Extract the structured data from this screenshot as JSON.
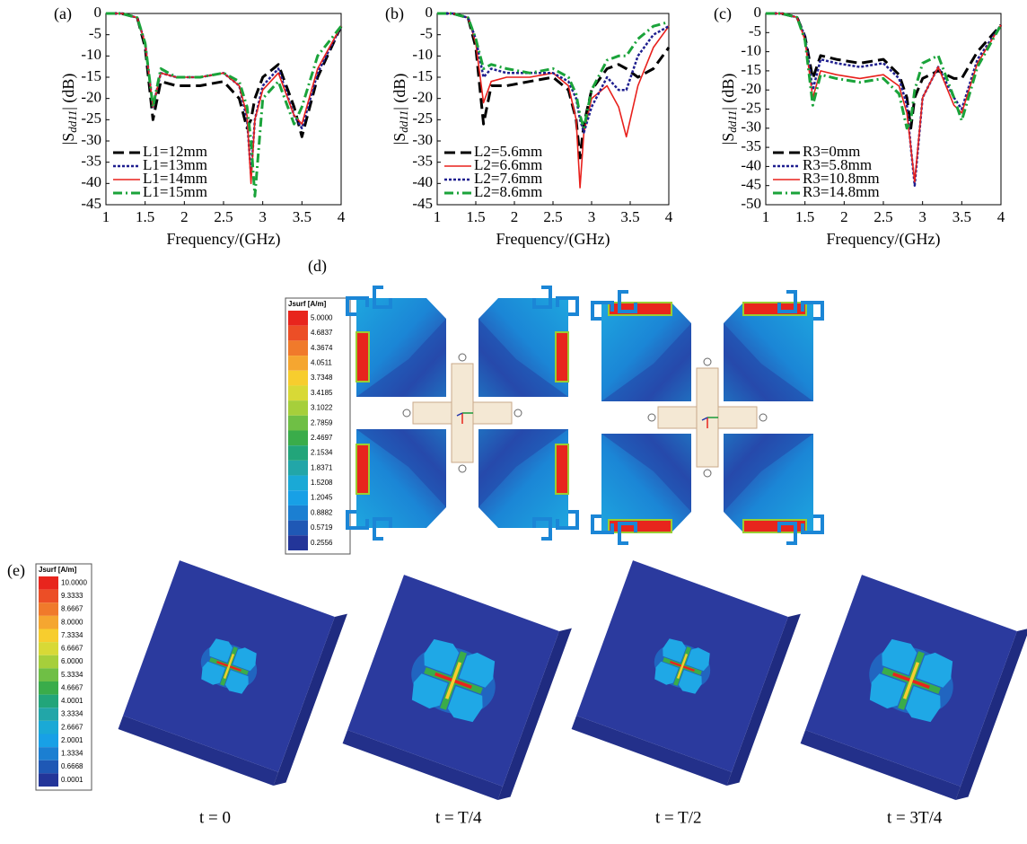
{
  "chart_data": [
    {
      "type": "line",
      "panel_label": "(a)",
      "xlabel": "Frequency/(GHz)",
      "ylabel": {
        "prefix": "|S",
        "subscript": "dd11",
        "suffix": "| (dB)"
      },
      "xlim": [
        1,
        4
      ],
      "xticks": [
        1,
        1.5,
        2,
        2.5,
        3,
        3.5,
        4
      ],
      "ylim": [
        -45,
        0
      ],
      "yticks": [
        0,
        -5,
        -10,
        -15,
        -20,
        -25,
        -30,
        -35,
        -40,
        -45
      ],
      "legend": "lower left",
      "x": [
        1,
        1.2,
        1.4,
        1.5,
        1.6,
        1.7,
        1.9,
        2.2,
        2.5,
        2.7,
        2.8,
        2.85,
        2.9,
        3.0,
        3.2,
        3.4,
        3.5,
        3.7,
        4
      ],
      "series": [
        {
          "name": "L1=12mm",
          "color": "#000000",
          "style": "dashed",
          "values": [
            0,
            0,
            -1,
            -8,
            -25,
            -16,
            -17,
            -17,
            -16,
            -20,
            -27,
            -25,
            -20,
            -15,
            -12,
            -22,
            -29,
            -15,
            -3
          ]
        },
        {
          "name": "L1=13mm",
          "color": "#1f1f8f",
          "style": "dotted",
          "values": [
            0,
            0,
            -1,
            -7,
            -22,
            -14,
            -15,
            -15,
            -14,
            -17,
            -25,
            -38,
            -25,
            -17,
            -13,
            -24,
            -27,
            -14,
            -3
          ]
        },
        {
          "name": "L1=14mm",
          "color": "#e8201c",
          "style": "solid",
          "values": [
            0,
            0,
            -1,
            -7,
            -22,
            -14,
            -15,
            -15,
            -14,
            -17,
            -24,
            -40,
            -25,
            -18,
            -14,
            -24,
            -26,
            -13,
            -3
          ]
        },
        {
          "name": "L1=15mm",
          "color": "#1aa33a",
          "style": "dashdot",
          "values": [
            0,
            0,
            -1,
            -7,
            -22,
            -13,
            -15,
            -15,
            -14,
            -16,
            -22,
            -30,
            -43,
            -20,
            -16,
            -26,
            -22,
            -10,
            -3
          ]
        }
      ]
    },
    {
      "type": "line",
      "panel_label": "(b)",
      "xlabel": "Frequency/(GHz)",
      "ylabel": {
        "prefix": "|S",
        "subscript": "dd11",
        "suffix": "| (dB)"
      },
      "xlim": [
        1,
        4
      ],
      "xticks": [
        1,
        1.5,
        2,
        2.5,
        3,
        3.5,
        4
      ],
      "ylim": [
        -45,
        0
      ],
      "yticks": [
        0,
        -5,
        -10,
        -15,
        -20,
        -25,
        -30,
        -35,
        -40,
        -45
      ],
      "legend": "lower left",
      "x": [
        1,
        1.2,
        1.4,
        1.5,
        1.6,
        1.7,
        1.9,
        2.2,
        2.5,
        2.7,
        2.8,
        2.85,
        2.9,
        3.0,
        3.2,
        3.35,
        3.45,
        3.6,
        3.8,
        4
      ],
      "series": [
        {
          "name": "L2=5.6mm",
          "color": "#000000",
          "style": "dashed",
          "values": [
            0,
            0,
            -1,
            -8,
            -26,
            -17,
            -17,
            -16,
            -15,
            -18,
            -25,
            -34,
            -26,
            -18,
            -13,
            -12,
            -13,
            -15,
            -13,
            -8
          ]
        },
        {
          "name": "L2=6.6mm",
          "color": "#e8201c",
          "style": "solid",
          "values": [
            0,
            0,
            -1,
            -7,
            -21,
            -16,
            -15,
            -15,
            -14,
            -17,
            -25,
            -41,
            -28,
            -20,
            -17,
            -22,
            -29,
            -17,
            -8,
            -3
          ]
        },
        {
          "name": "L2=7.6mm",
          "color": "#1f1f8f",
          "style": "dotted",
          "values": [
            0,
            0,
            -1,
            -6,
            -15,
            -13,
            -14,
            -14,
            -14,
            -16,
            -20,
            -25,
            -28,
            -22,
            -15,
            -18,
            -18,
            -10,
            -5,
            -3
          ]
        },
        {
          "name": "L2=8.6mm",
          "color": "#1aa33a",
          "style": "dashdot",
          "values": [
            0,
            0,
            -1,
            -6,
            -13,
            -12,
            -13,
            -14,
            -13,
            -15,
            -19,
            -24,
            -27,
            -18,
            -11,
            -10,
            -10,
            -6,
            -3,
            -2
          ]
        }
      ]
    },
    {
      "type": "line",
      "panel_label": "(c)",
      "xlabel": "Frequency/(GHz)",
      "ylabel": {
        "prefix": "|S",
        "subscript": "dd11",
        "suffix": "| (dB)"
      },
      "xlim": [
        1,
        4
      ],
      "xticks": [
        1,
        1.5,
        2,
        2.5,
        3,
        3.5,
        4
      ],
      "ylim": [
        -50,
        0
      ],
      "yticks": [
        0,
        -5,
        -10,
        -15,
        -20,
        -25,
        -30,
        -35,
        -40,
        -45,
        -50
      ],
      "legend": "lower left",
      "x": [
        1,
        1.2,
        1.4,
        1.5,
        1.6,
        1.7,
        1.9,
        2.2,
        2.5,
        2.7,
        2.8,
        2.85,
        2.9,
        3.0,
        3.2,
        3.4,
        3.5,
        3.7,
        4
      ],
      "series": [
        {
          "name": "R3=0mm",
          "color": "#000000",
          "style": "dashed",
          "values": [
            0,
            0,
            -1,
            -6,
            -17,
            -11,
            -12,
            -13,
            -12,
            -16,
            -22,
            -30,
            -22,
            -17,
            -15,
            -17,
            -17,
            -10,
            -3
          ]
        },
        {
          "name": "R3=5.8mm",
          "color": "#1f1f8f",
          "style": "dotted",
          "values": [
            0,
            0,
            -1,
            -6,
            -20,
            -12,
            -13,
            -14,
            -13,
            -17,
            -24,
            -35,
            -45,
            -22,
            -14,
            -22,
            -25,
            -12,
            -3
          ]
        },
        {
          "name": "R3=10.8mm",
          "color": "#e8201c",
          "style": "solid",
          "values": [
            0,
            0,
            -1,
            -7,
            -22,
            -15,
            -16,
            -17,
            -16,
            -19,
            -26,
            -35,
            -44,
            -22,
            -14,
            -24,
            -26,
            -13,
            -3
          ]
        },
        {
          "name": "R3=14.8mm",
          "color": "#1aa33a",
          "style": "dashdot",
          "values": [
            0,
            0,
            -1,
            -7,
            -24,
            -16,
            -17,
            -18,
            -17,
            -21,
            -30,
            -28,
            -20,
            -13,
            -11,
            -22,
            -28,
            -14,
            -3
          ]
        }
      ]
    }
  ],
  "field_panels": {
    "current_map": {
      "label": "(d)",
      "colorbar": {
        "title": "Jsurf [A/m]",
        "levels": [
          "5.0000",
          "4.6837",
          "4.3674",
          "4.0511",
          "3.7348",
          "3.4185",
          "3.1022",
          "2.7859",
          "2.4697",
          "2.1534",
          "1.8371",
          "1.5208",
          "1.2045",
          "0.8882",
          "0.5719",
          "0.2556"
        ]
      }
    },
    "time_sequence": {
      "label": "(e)",
      "colorbar": {
        "title": "Jsurf [A/m]",
        "levels": [
          "10.0000",
          "9.3333",
          "8.6667",
          "8.0000",
          "7.3334",
          "6.6667",
          "6.0000",
          "5.3334",
          "4.6667",
          "4.0001",
          "3.3334",
          "2.6667",
          "2.0001",
          "1.3334",
          "0.6668",
          "0.0001"
        ]
      },
      "frames": [
        "t = 0",
        "t = T/4",
        "t = T/2",
        "t = 3T/4"
      ]
    }
  }
}
